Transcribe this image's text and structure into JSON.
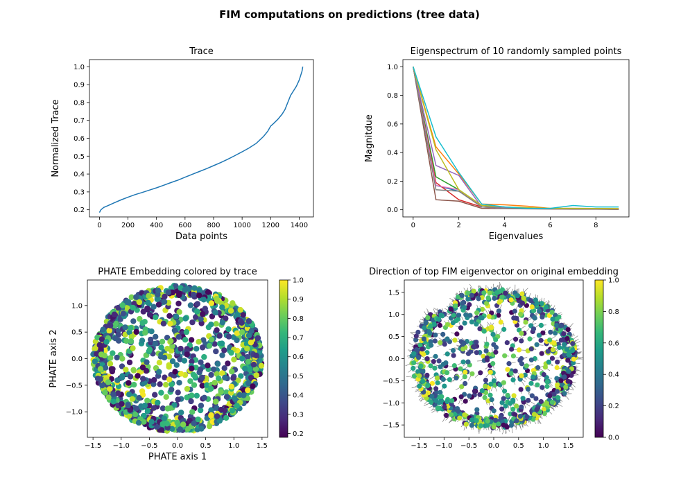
{
  "figure": {
    "suptitle": "FIM computations on predictions (tree data)"
  },
  "chart_data": [
    {
      "id": "trace",
      "type": "line",
      "title": "Trace",
      "xlabel": "Data points",
      "ylabel": "Normalized Trace",
      "xlim": [
        -70,
        1500
      ],
      "ylim": [
        0.16,
        1.04
      ],
      "xticks": [
        0,
        200,
        400,
        600,
        800,
        1000,
        1200,
        1400
      ],
      "yticks": [
        0.2,
        0.3,
        0.4,
        0.5,
        0.6,
        0.7,
        0.8,
        0.9,
        1.0
      ],
      "ytick_labels": [
        "0.2",
        "0.3",
        "0.4",
        "0.5",
        "0.6",
        "0.7",
        "0.8",
        "0.9",
        "1.0"
      ],
      "series": [
        {
          "color": "#1f77b4",
          "x": [
            0,
            10,
            30,
            60,
            100,
            150,
            200,
            250,
            300,
            350,
            400,
            450,
            500,
            550,
            600,
            650,
            700,
            750,
            800,
            850,
            900,
            950,
            1000,
            1050,
            1100,
            1150,
            1180,
            1200,
            1220,
            1250,
            1280,
            1300,
            1320,
            1340,
            1360,
            1380,
            1400,
            1410,
            1420,
            1425
          ],
          "y": [
            0.185,
            0.2,
            0.213,
            0.223,
            0.238,
            0.255,
            0.27,
            0.285,
            0.297,
            0.31,
            0.323,
            0.337,
            0.352,
            0.366,
            0.382,
            0.398,
            0.414,
            0.43,
            0.447,
            0.464,
            0.483,
            0.503,
            0.524,
            0.546,
            0.572,
            0.61,
            0.64,
            0.668,
            0.682,
            0.706,
            0.734,
            0.76,
            0.8,
            0.84,
            0.865,
            0.89,
            0.925,
            0.95,
            0.975,
            1.0
          ]
        }
      ]
    },
    {
      "id": "eigen",
      "type": "line",
      "title": "Eigenspectrum of 10 randomly sampled points",
      "xlabel": "Eigenvalues",
      "ylabel": "Magnitdue",
      "xlim": [
        -0.45,
        9.45
      ],
      "ylim": [
        -0.05,
        1.05
      ],
      "xticks": [
        0,
        2,
        4,
        6,
        8
      ],
      "yticks": [
        0.0,
        0.2,
        0.4,
        0.6,
        0.8,
        1.0
      ],
      "ytick_labels": [
        "0.0",
        "0.2",
        "0.4",
        "0.6",
        "0.8",
        "1.0"
      ],
      "x": [
        0,
        1,
        2,
        3,
        4,
        5,
        6,
        7,
        8,
        9
      ],
      "series": [
        {
          "color": "#1f77b4",
          "values": [
            1.0,
            0.17,
            0.13,
            0.03,
            0.015,
            0.01,
            0.008,
            0.007,
            0.006,
            0.005
          ]
        },
        {
          "color": "#ff7f0e",
          "values": [
            1.0,
            0.44,
            0.25,
            0.04,
            0.035,
            0.025,
            0.01,
            0.01,
            0.009,
            0.008
          ]
        },
        {
          "color": "#2ca02c",
          "values": [
            1.0,
            0.23,
            0.14,
            0.03,
            0.02,
            0.01,
            0.008,
            0.007,
            0.006,
            0.005
          ]
        },
        {
          "color": "#d62728",
          "values": [
            1.0,
            0.19,
            0.07,
            0.02,
            0.015,
            0.01,
            0.007,
            0.006,
            0.005,
            0.004
          ]
        },
        {
          "color": "#9467bd",
          "values": [
            1.0,
            0.31,
            0.24,
            0.02,
            0.015,
            0.01,
            0.008,
            0.007,
            0.006,
            0.005
          ]
        },
        {
          "color": "#8c564b",
          "values": [
            1.0,
            0.07,
            0.06,
            0.01,
            0.008,
            0.006,
            0.005,
            0.004,
            0.004,
            0.003
          ]
        },
        {
          "color": "#e377c2",
          "values": [
            1.0,
            0.17,
            0.14,
            0.02,
            0.01,
            0.008,
            0.006,
            0.005,
            0.005,
            0.004
          ]
        },
        {
          "color": "#7f7f7f",
          "values": [
            1.0,
            0.14,
            0.13,
            0.02,
            0.01,
            0.008,
            0.006,
            0.005,
            0.005,
            0.004
          ]
        },
        {
          "color": "#bcbd22",
          "values": [
            1.0,
            0.42,
            0.14,
            0.03,
            0.02,
            0.015,
            0.01,
            0.01,
            0.009,
            0.008
          ]
        },
        {
          "color": "#17becf",
          "values": [
            1.0,
            0.51,
            0.26,
            0.04,
            0.02,
            0.01,
            0.01,
            0.03,
            0.02,
            0.02
          ]
        }
      ]
    },
    {
      "id": "phate",
      "type": "scatter",
      "title": "PHATE Embedding colored by trace",
      "xlabel": "PHATE axis 1",
      "ylabel": "PHATE axis 2",
      "xlim": [
        -1.6,
        1.6
      ],
      "ylim": [
        -1.48,
        1.48
      ],
      "xticks": [
        -1.5,
        -1.0,
        -0.5,
        0.0,
        0.5,
        1.0,
        1.5
      ],
      "xtick_labels": [
        "−1.5",
        "−1.0",
        "−0.5",
        "0.0",
        "0.5",
        "1.0",
        "1.5"
      ],
      "yticks": [
        -1.0,
        -0.5,
        0.0,
        0.5,
        1.0
      ],
      "ytick_labels": [
        "−1.0",
        "−0.5",
        "0.0",
        "0.5",
        "1.0"
      ],
      "colormap": "viridis",
      "colorbar": {
        "range": [
          0.18,
          1.0
        ],
        "ticks": [
          0.2,
          0.3,
          0.4,
          0.5,
          0.6,
          0.7,
          0.8,
          0.9,
          1.0
        ],
        "tick_labels": [
          "0.2",
          "0.3",
          "0.4",
          "0.5",
          "0.6",
          "0.7",
          "0.8",
          "0.9",
          "1.0"
        ]
      },
      "ellipse": {
        "rx": 1.5,
        "ry": 1.38
      },
      "n_points": 1425
    },
    {
      "id": "fim",
      "type": "scatter",
      "title": "Direction of top FIM eigenvector on original embedding",
      "xlim": [
        -1.8,
        1.8
      ],
      "ylim": [
        -1.78,
        1.78
      ],
      "xticks": [
        -1.5,
        -1.0,
        -0.5,
        0.0,
        0.5,
        1.0,
        1.5
      ],
      "xtick_labels": [
        "−1.5",
        "−1.0",
        "−0.5",
        "0.0",
        "0.5",
        "1.0",
        "1.5"
      ],
      "yticks": [
        -1.5,
        -1.0,
        -0.5,
        0.0,
        0.5,
        1.0,
        1.5
      ],
      "ytick_labels": [
        "−1.5",
        "−1.0",
        "−0.5",
        "0.0",
        "0.5",
        "1.0",
        "1.5"
      ],
      "colormap": "viridis",
      "colorbar": {
        "range": [
          0.0,
          1.0
        ],
        "ticks": [
          0.0,
          0.2,
          0.4,
          0.6,
          0.8,
          1.0
        ],
        "tick_labels": [
          "0.0",
          "0.2",
          "0.4",
          "0.6",
          "0.8",
          "1.0"
        ]
      },
      "ellipse": {
        "rx": 1.65,
        "ry": 1.58
      },
      "arrow_color": "#7f7f7f",
      "n_points": 1000
    }
  ]
}
